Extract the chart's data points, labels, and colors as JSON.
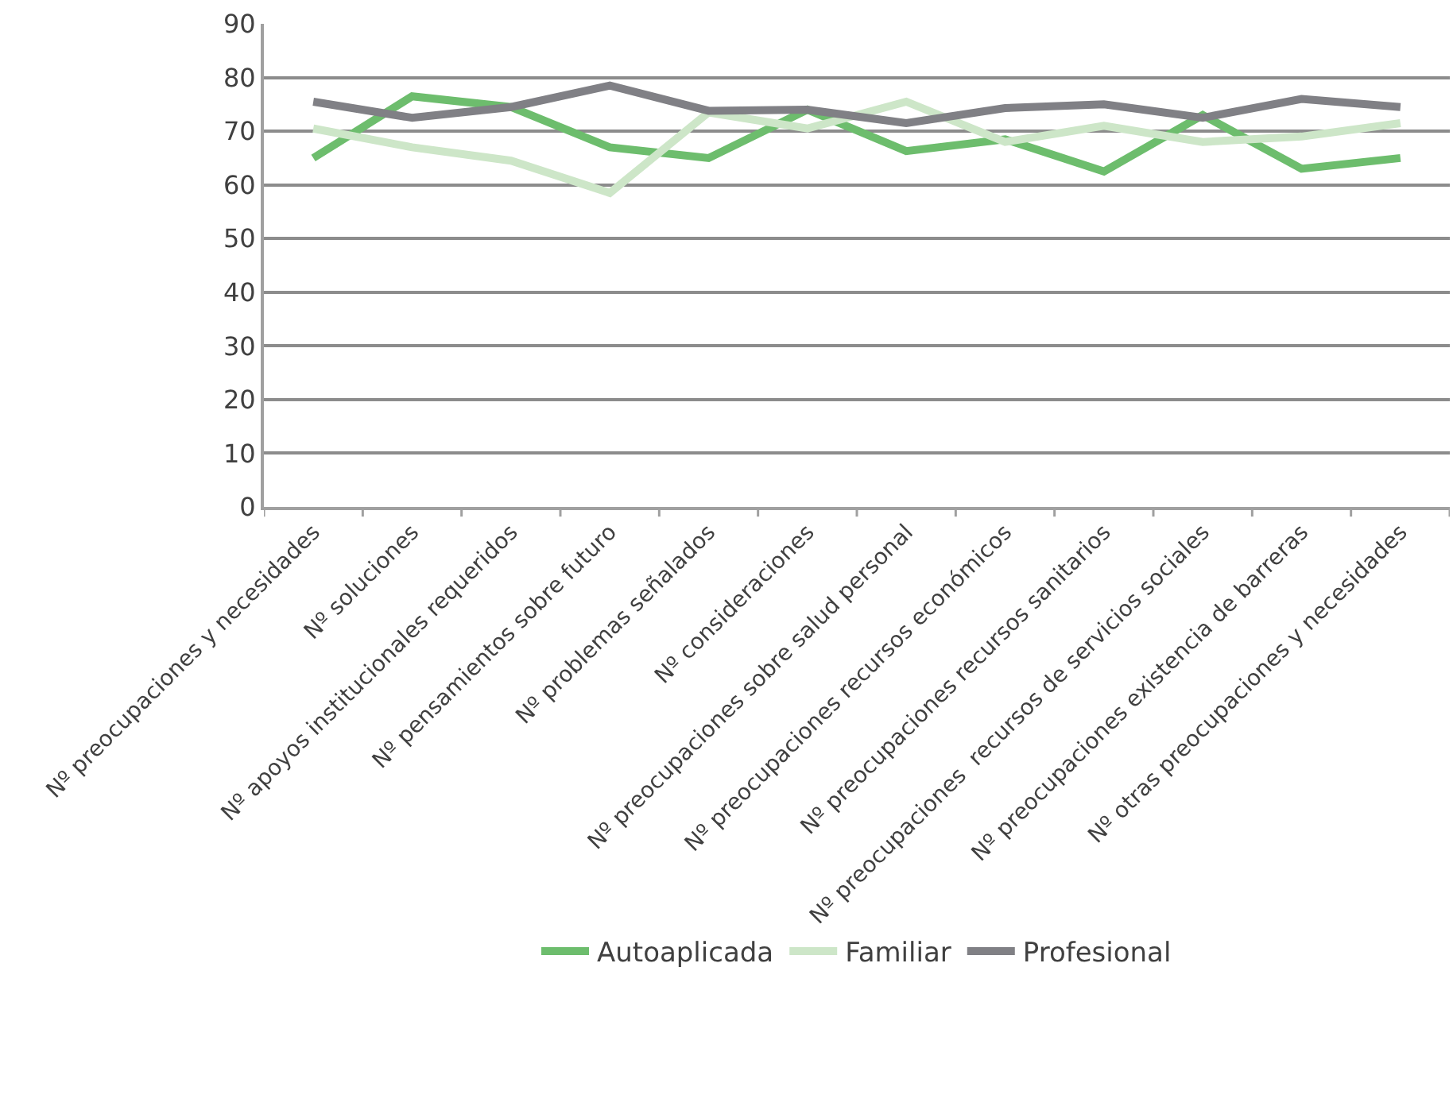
{
  "chart_data": {
    "type": "line",
    "categories": [
      "Nº preocupaciones y necesidades",
      "Nº soluciones",
      "Nº apoyos institucionales requeridos",
      "Nº pensamientos sobre futuro",
      "Nº problemas señalados",
      "Nº consideraciones",
      "Nº preocupaciones sobre salud personal",
      "Nº preocupaciones recursos económicos",
      "Nº preocupaciones recursos sanitarios",
      "Nº preocupaciones  recursos de servicios sociales",
      "Nº preocupaciones existencia de barreras",
      "Nº otras preocupaciones y necesidades"
    ],
    "series": [
      {
        "name": "Autoaplicada",
        "color": "#6dbd6d",
        "values": [
          65,
          76.5,
          74.5,
          67,
          65,
          74,
          66.3,
          68.5,
          62.5,
          73,
          63,
          65
        ]
      },
      {
        "name": "Familiar",
        "color": "#cde6c8",
        "values": [
          70.5,
          67,
          64.5,
          58.5,
          73.5,
          70.5,
          75.5,
          68,
          71,
          68,
          69,
          71.5
        ]
      },
      {
        "name": "Profesional",
        "color": "#808085",
        "values": [
          75.5,
          72.5,
          74.5,
          78.5,
          73.8,
          74,
          71.5,
          74.3,
          75,
          72.5,
          76,
          74.5
        ]
      }
    ],
    "ylim": [
      0,
      90
    ],
    "yticks": [
      0,
      10,
      20,
      30,
      40,
      50,
      60,
      70,
      80,
      90
    ],
    "grid": "y",
    "legend": "bottom",
    "marker": "none",
    "line_style": "solid"
  }
}
